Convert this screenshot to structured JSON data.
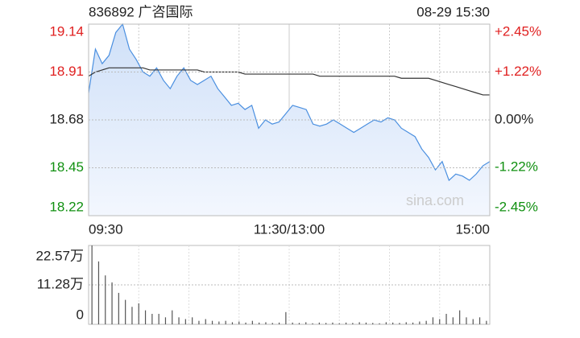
{
  "header": {
    "code_name": "836892 广咨国际",
    "time": "08-29 15:30"
  },
  "watermark": "sina.com",
  "chart_data": [
    {
      "type": "line",
      "ylim": [
        18.22,
        19.14
      ],
      "yticks": [
        19.14,
        18.91,
        18.68,
        18.45,
        18.22
      ],
      "y2lim": [
        -2.45,
        2.45
      ],
      "y2ticks": [
        {
          "value": 2.45,
          "label": "+2.45%"
        },
        {
          "value": 1.22,
          "label": "+1.22%"
        },
        {
          "value": 0,
          "label": "0.00%"
        },
        {
          "value": -1.22,
          "label": "-1.22%"
        },
        {
          "value": -2.45,
          "label": "-2.45%"
        }
      ],
      "xtick_labels": [
        "09:30",
        "11:30/13:00",
        "15:00"
      ],
      "up_color": "#e02020",
      "down_color": "#109010",
      "flat_color": "#222222",
      "grid": true,
      "series": [
        {
          "color": "#4a8fe0",
          "fill": "#dbe8fb",
          "values": [
            18.81,
            19.02,
            18.95,
            18.99,
            19.1,
            19.14,
            19.02,
            18.97,
            18.91,
            18.89,
            18.93,
            18.87,
            18.83,
            18.89,
            18.93,
            18.87,
            18.85,
            18.87,
            18.89,
            18.83,
            18.79,
            18.75,
            18.76,
            18.73,
            18.75,
            18.64,
            18.68,
            18.66,
            18.67,
            18.71,
            18.75,
            18.74,
            18.73,
            18.66,
            18.65,
            18.66,
            18.68,
            18.66,
            18.64,
            18.62,
            18.64,
            18.66,
            18.68,
            18.67,
            18.69,
            18.68,
            18.64,
            18.62,
            18.6,
            18.54,
            18.5,
            18.44,
            18.48,
            18.39,
            18.42,
            18.41,
            18.39,
            18.42,
            18.46,
            18.48
          ]
        },
        {
          "color": "#333333",
          "values": [
            18.89,
            18.91,
            18.92,
            18.93,
            18.93,
            18.93,
            18.93,
            18.93,
            18.93,
            18.92,
            18.92,
            18.92,
            18.92,
            18.92,
            18.92,
            18.92,
            18.92,
            18.91,
            18.91,
            18.91,
            18.91,
            18.91,
            18.91,
            18.9,
            18.9,
            18.9,
            18.9,
            18.9,
            18.9,
            18.9,
            18.9,
            18.9,
            18.9,
            18.9,
            18.89,
            18.89,
            18.89,
            18.89,
            18.89,
            18.89,
            18.89,
            18.89,
            18.89,
            18.89,
            18.89,
            18.89,
            18.88,
            18.88,
            18.88,
            18.88,
            18.88,
            18.87,
            18.86,
            18.85,
            18.84,
            18.83,
            18.82,
            18.81,
            18.8,
            18.8
          ]
        }
      ]
    },
    {
      "type": "bar",
      "color": "#555555",
      "ylim": [
        0,
        22.57
      ],
      "yticks": [
        {
          "value": 22.57,
          "label": "22.57万"
        },
        {
          "value": 11.28,
          "label": "11.28万"
        },
        0
      ],
      "values": [
        22.57,
        18,
        14,
        12,
        9,
        7,
        5,
        6,
        4,
        3,
        3,
        2,
        4,
        2,
        1.5,
        2,
        1,
        1.5,
        1,
        0.8,
        1,
        0.6,
        0.8,
        0.5,
        1,
        0.5,
        0.6,
        0.4,
        0.5,
        3.5,
        0.5,
        0.4,
        0.6,
        0.3,
        0.5,
        0.4,
        0.5,
        0.3,
        0.5,
        0.4,
        0.6,
        0.5,
        0.4,
        0.3,
        0.6,
        0.5,
        0.4,
        0.6,
        0.5,
        0.8,
        1,
        2,
        1.5,
        3,
        2,
        4,
        2,
        1.5,
        2,
        1
      ]
    }
  ]
}
